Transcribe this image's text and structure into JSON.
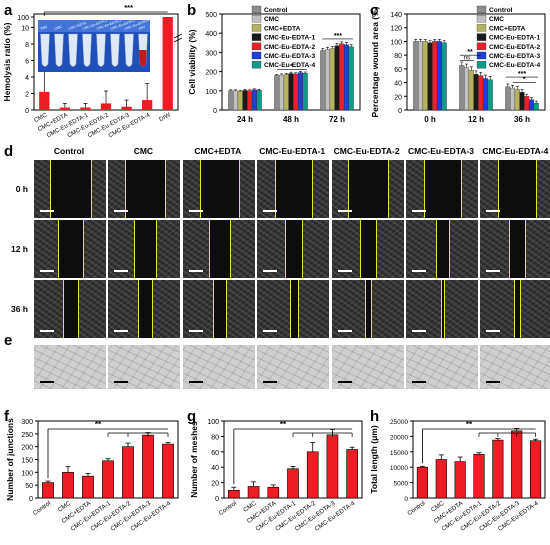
{
  "panel_labels": {
    "a": "a",
    "b": "b",
    "c": "c",
    "d": "d",
    "e": "e",
    "f": "f",
    "g": "g",
    "h": "h"
  },
  "colors": {
    "control": "#8c8c8c",
    "cmc": "#c0c0c0",
    "cmc_edta": "#b5b35c",
    "eu1": "#1a1a1a",
    "eu2": "#e8212b",
    "eu3": "#1f3fd6",
    "eu4": "#0f9a8a",
    "red_bar": "#ee1c25"
  },
  "chart_data": [
    {
      "id": "a",
      "type": "bar",
      "ylabel": "Hemolysis ratio (%)",
      "categories": [
        "CMC",
        "CMC+EDTA",
        "CMC-Eu-EDTA-1",
        "CMC-Eu-EDTA-2",
        "CMC-Eu-EDTA-3",
        "CMC-Eu-EDTA-4",
        "DIW"
      ],
      "values": [
        2.2,
        0.3,
        0.3,
        0.8,
        0.4,
        1.2,
        100
      ],
      "errors": [
        2.5,
        0.5,
        0.5,
        1.5,
        0.8,
        2.0,
        0
      ],
      "yticks": [
        "0",
        "2",
        "4",
        "6",
        "8",
        "10",
        "100"
      ],
      "significance": "***",
      "inset_labels": [
        "PBS",
        "CMC",
        "CMC+EDTA",
        "CMC-Eu-EDTA-1",
        "CMC-Eu-EDTA-2",
        "CMC-Eu-EDTA-3",
        "CMC-Eu-EDTA-4",
        "DIW"
      ]
    },
    {
      "id": "b",
      "type": "bar",
      "ylabel": "Cell viability (%)",
      "categories": [
        "24 h",
        "48 h",
        "72 h"
      ],
      "ylim": [
        0,
        500
      ],
      "yticks": [
        0,
        100,
        200,
        300,
        400,
        500
      ],
      "series": [
        {
          "name": "Control",
          "values": [
            100,
            180,
            310
          ],
          "errors": [
            5,
            6,
            10
          ]
        },
        {
          "name": "CMC",
          "values": [
            100,
            182,
            315
          ],
          "errors": [
            5,
            6,
            12
          ]
        },
        {
          "name": "CMC+EDTA",
          "values": [
            98,
            185,
            320
          ],
          "errors": [
            5,
            6,
            10
          ]
        },
        {
          "name": "CMC-Eu-EDTA-1",
          "values": [
            102,
            190,
            335
          ],
          "errors": [
            5,
            7,
            12
          ]
        },
        {
          "name": "CMC-Eu-EDTA-2",
          "values": [
            100,
            188,
            345
          ],
          "errors": [
            5,
            6,
            10
          ]
        },
        {
          "name": "CMC-Eu-EDTA-3",
          "values": [
            105,
            195,
            340
          ],
          "errors": [
            5,
            7,
            12
          ]
        },
        {
          "name": "CMC-Eu-EDTA-4",
          "values": [
            103,
            192,
            330
          ],
          "errors": [
            5,
            6,
            10
          ]
        }
      ],
      "significance": [
        "*",
        "***"
      ]
    },
    {
      "id": "c",
      "type": "bar",
      "ylabel": "Percentage wound area (%)",
      "categories": [
        "0 h",
        "12 h",
        "36 h"
      ],
      "ylim": [
        0,
        140
      ],
      "yticks": [
        0,
        20,
        40,
        60,
        80,
        100,
        120,
        140
      ],
      "series": [
        {
          "name": "Control",
          "values": [
            100,
            65,
            34
          ],
          "errors": [
            3,
            5,
            4
          ]
        },
        {
          "name": "CMC",
          "values": [
            100,
            62,
            32
          ],
          "errors": [
            3,
            5,
            4
          ]
        },
        {
          "name": "CMC+EDTA",
          "values": [
            100,
            58,
            30
          ],
          "errors": [
            3,
            5,
            4
          ]
        },
        {
          "name": "CMC-Eu-EDTA-1",
          "values": [
            98,
            52,
            26
          ],
          "errors": [
            3,
            5,
            4
          ]
        },
        {
          "name": "CMC-Eu-EDTA-2",
          "values": [
            100,
            50,
            20
          ],
          "errors": [
            3,
            5,
            3
          ]
        },
        {
          "name": "CMC-Eu-EDTA-3",
          "values": [
            100,
            46,
            15
          ],
          "errors": [
            3,
            5,
            3
          ]
        },
        {
          "name": "CMC-Eu-EDTA-4",
          "values": [
            98,
            44,
            10
          ],
          "errors": [
            3,
            5,
            3
          ]
        }
      ],
      "significance": [
        "**",
        "ns",
        "***",
        "*"
      ]
    },
    {
      "id": "f",
      "type": "bar",
      "ylabel": "Number of junctions",
      "categories": [
        "Control",
        "CMC",
        "CMC+EDTA",
        "CMC-Eu-EDTA-1",
        "CMC-Eu-EDTA-2",
        "CMC-Eu-EDTA-3",
        "CMC-Eu-EDTA-4"
      ],
      "values": [
        60,
        100,
        85,
        145,
        200,
        245,
        210
      ],
      "errors": [
        6,
        22,
        10,
        8,
        14,
        10,
        6
      ],
      "ylim": [
        0,
        300
      ],
      "yticks": [
        0,
        50,
        100,
        150,
        200,
        250,
        300
      ],
      "significance": "**"
    },
    {
      "id": "g",
      "type": "bar",
      "ylabel": "Number of meshes",
      "categories": [
        "Control",
        "CMC",
        "CMC+EDTA",
        "CMC-Eu-EDTA-1",
        "CMC-Eu-EDTA-2",
        "CMC-Eu-EDTA-3",
        "CMC-Eu-EDTA-4"
      ],
      "values": [
        10,
        15,
        14,
        38,
        60,
        82,
        63
      ],
      "errors": [
        4,
        6,
        3,
        3,
        12,
        7,
        3
      ],
      "ylim": [
        0,
        100
      ],
      "yticks": [
        0,
        20,
        40,
        60,
        80,
        100
      ],
      "significance": "**"
    },
    {
      "id": "h",
      "type": "bar",
      "ylabel": "Total length (μm)",
      "categories": [
        "Control",
        "CMC",
        "CMC+EDTA",
        "CMC-Eu-EDTA-1",
        "CMC-Eu-EDTA-2",
        "CMC-Eu-EDTA-3",
        "CMC-Eu-EDTA-4"
      ],
      "values": [
        10000,
        12500,
        11800,
        14200,
        18800,
        21800,
        18600
      ],
      "errors": [
        300,
        1500,
        1500,
        500,
        500,
        800,
        500
      ],
      "ylim": [
        0,
        25000
      ],
      "yticks": [
        0,
        5000,
        10000,
        15000,
        20000,
        25000
      ],
      "significance": "**"
    }
  ],
  "panel_d": {
    "columns": [
      "Control",
      "CMC",
      "CMC+EDTA",
      "CMC-Eu-EDTA-1",
      "CMC-Eu-EDTA-2",
      "CMC-Eu-EDTA-3",
      "CMC-Eu-EDTA-4"
    ],
    "rows": [
      "0 h",
      "12 h",
      "36 h"
    ],
    "gap_fraction": [
      [
        0.55,
        0.55,
        0.52,
        0.5,
        0.55,
        0.5,
        0.52
      ],
      [
        0.32,
        0.3,
        0.28,
        0.22,
        0.2,
        0.18,
        0.2
      ],
      [
        0.2,
        0.18,
        0.16,
        0.1,
        0.06,
        0.04,
        0.08
      ]
    ]
  }
}
